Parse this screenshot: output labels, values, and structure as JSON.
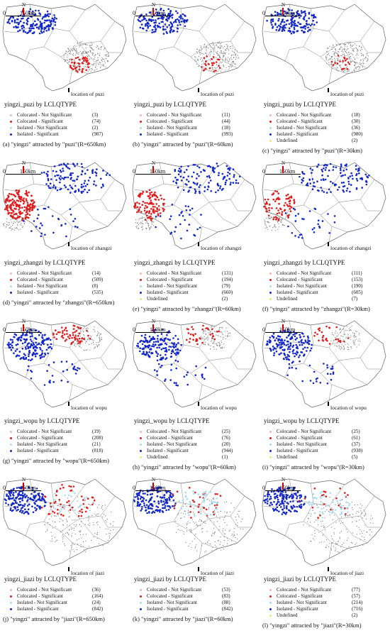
{
  "colors": {
    "colocated_not_significant": "#f4b6a8",
    "colocated_significant": "#e01b1b",
    "isolated_not_significant": "#a9dcef",
    "isolated_significant": "#1327c8",
    "undefined": "#f5e27a",
    "background_points": "#777777",
    "boundary": "#666666"
  },
  "scale": {
    "zero": "0",
    "distance": "150km",
    "north": "N"
  },
  "panels": [
    {
      "title": "yingzi_puzi by LCLQTYPE",
      "location": "location of puzi",
      "caption": "(a) \"yingzi\" attracted by \"puzi\"(R=650km)",
      "legend": [
        {
          "label": "Colocated - Not Significant",
          "count": "(3)",
          "color": "#f4b6a8"
        },
        {
          "label": "Colocated - Significant",
          "count": "(74)",
          "color": "#e01b1b"
        },
        {
          "label": "Isolated - Not Significant",
          "count": "(2)",
          "color": "#a9dcef"
        },
        {
          "label": "Isolated - Significant",
          "count": "(987)",
          "color": "#1327c8"
        }
      ]
    },
    {
      "title": "yingzi_puzi by LCLQTYPE",
      "location": "location of puzi",
      "caption": "(b) \"yingzi\" attracted by \"puzi\"(R=60km)",
      "legend": [
        {
          "label": "Colocated - Not Significant",
          "count": "(11)",
          "color": "#f4b6a8"
        },
        {
          "label": "Colocated - Significant",
          "count": "(44)",
          "color": "#e01b1b"
        },
        {
          "label": "Isolated - Not Significant",
          "count": "(18)",
          "color": "#a9dcef"
        },
        {
          "label": "Isolated - Significant",
          "count": "(993)",
          "color": "#1327c8"
        }
      ]
    },
    {
      "title": "yingzi_puzi by LCLQTYPE",
      "location": "location of puzi",
      "caption": "(c) \"yingzi\" attracted by \"puzi\"(R=30km)",
      "legend": [
        {
          "label": "Colocated - Not Significant",
          "count": "(18)",
          "color": "#f4b6a8"
        },
        {
          "label": "Colocated - Significant",
          "count": "(30)",
          "color": "#e01b1b"
        },
        {
          "label": "Isolated - Not Significant",
          "count": "(36)",
          "color": "#a9dcef"
        },
        {
          "label": "Isolated - Significant",
          "count": "(980)",
          "color": "#1327c8"
        },
        {
          "label": "Undefined",
          "count": "(2)",
          "color": "#f5e27a"
        }
      ]
    },
    {
      "title": "yingzi_zhangzi by LCLQTYPE",
      "location": "location of zhangzi",
      "caption": "(d) \"yingzi\" attracted by \"zhangzi\"(R=650km)",
      "legend": [
        {
          "label": "Colocated - Not Significant",
          "count": "(14)",
          "color": "#f4b6a8"
        },
        {
          "label": "Colocated - Significant",
          "count": "(509)",
          "color": "#e01b1b"
        },
        {
          "label": "Isolated - Not Significant",
          "count": "(8)",
          "color": "#a9dcef"
        },
        {
          "label": "Isolated - Significant",
          "count": "(535)",
          "color": "#1327c8"
        }
      ]
    },
    {
      "title": "yingzi_zhangzi by LCLQTYPE",
      "location": "location of zhangzi",
      "caption": "(e) \"yingzi\" attracted by \"zhangzi\"(R=60km)",
      "legend": [
        {
          "label": "Colocated - Not Significant",
          "count": "(131)",
          "color": "#f4b6a8"
        },
        {
          "label": "Colocated - Significant",
          "count": "(194)",
          "color": "#e01b1b"
        },
        {
          "label": "Isolated - Not Significant",
          "count": "(79)",
          "color": "#a9dcef"
        },
        {
          "label": "Isolated - Significant",
          "count": "(660)",
          "color": "#1327c8"
        },
        {
          "label": "Undefined",
          "count": "(2)",
          "color": "#f5e27a"
        }
      ]
    },
    {
      "title": "yingzi_zhangzi by LCLQTYPE",
      "location": "location of zhangzi",
      "caption": "(f) \"yingzi\" attracted by \"zhangzi\"(R=30km)",
      "legend": [
        {
          "label": "Colocated - Not Significant",
          "count": "(111)",
          "color": "#f4b6a8"
        },
        {
          "label": "Colocated - Significant",
          "count": "(153)",
          "color": "#e01b1b"
        },
        {
          "label": "Isolated - Not Significant",
          "count": "(190)",
          "color": "#a9dcef"
        },
        {
          "label": "Isolated - Significant",
          "count": "(605)",
          "color": "#1327c8"
        },
        {
          "label": "Undefined",
          "count": "(7)",
          "color": "#f5e27a"
        }
      ]
    },
    {
      "title": "yingzi_wopu by LCLQTYPE",
      "location": "location of wopu",
      "caption": "(g) \"yingzi\" attracted by \"wopu\"(R=650km)",
      "legend": [
        {
          "label": "Colocated - Not Significant",
          "count": "(19)",
          "color": "#f4b6a8"
        },
        {
          "label": "Colocated - Significant",
          "count": "(208)",
          "color": "#e01b1b"
        },
        {
          "label": "Isolated - Not Significant",
          "count": "(21)",
          "color": "#a9dcef"
        },
        {
          "label": "Isolated - Significant",
          "count": "(818)",
          "color": "#1327c8"
        }
      ]
    },
    {
      "title": "yingzi_wopu by LCLQTYPE",
      "location": "location of wopu",
      "caption": "(h) \"yingzi\" attracted by \"wopu\"(R=60km)",
      "legend": [
        {
          "label": "Colocated - Not Significant",
          "count": "(25)",
          "color": "#f4b6a8"
        },
        {
          "label": "Colocated - Significant",
          "count": "(76)",
          "color": "#e01b1b"
        },
        {
          "label": "Isolated - Not Significant",
          "count": "(20)",
          "color": "#a9dcef"
        },
        {
          "label": "Isolated - Significant",
          "count": "(944)",
          "color": "#1327c8"
        },
        {
          "label": "Undefined",
          "count": "(1)",
          "color": "#f5e27a"
        }
      ]
    },
    {
      "title": "yingzi_wopu by LCLQTYPE",
      "location": "location of wopu",
      "caption": "(i) \"yingzi\" attracted by \"wopu\"(R=30km)",
      "legend": [
        {
          "label": "Colocated - Not Significant",
          "count": "(25)",
          "color": "#f4b6a8"
        },
        {
          "label": "Colocated - Significant",
          "count": "(61)",
          "color": "#e01b1b"
        },
        {
          "label": "Isolated - Not Significant",
          "count": "(37)",
          "color": "#a9dcef"
        },
        {
          "label": "Isolated - Significant",
          "count": "(938)",
          "color": "#1327c8"
        },
        {
          "label": "Undefined",
          "count": "(5)",
          "color": "#f5e27a"
        }
      ]
    },
    {
      "title": "yingzi_jiazi by LCLQTYPE",
      "location": "location of jiazi",
      "caption": "(j) \"yingzi\" attracted by \"jiazi\"(R=650km)",
      "legend": [
        {
          "label": "Colocated - Not Significant",
          "count": "(36)",
          "color": "#f4b6a8"
        },
        {
          "label": "Colocated - Significant",
          "count": "(164)",
          "color": "#e01b1b"
        },
        {
          "label": "Isolated - Not Significant",
          "count": "(24)",
          "color": "#a9dcef"
        },
        {
          "label": "Isolated - Significant",
          "count": "(842)",
          "color": "#1327c8"
        }
      ]
    },
    {
      "title": "yingzi_jiazi by LCLQTYPE",
      "location": "location of jiazi",
      "caption": "(k) \"yingzi\" attracted by \"jiazi\"(R=60km)",
      "legend": [
        {
          "label": "Colocated - Not Significant",
          "count": "(53)",
          "color": "#f4b6a8"
        },
        {
          "label": "Colocated - Significant",
          "count": "(83)",
          "color": "#e01b1b"
        },
        {
          "label": "Isolated - Not Significant",
          "count": "(88)",
          "color": "#a9dcef"
        },
        {
          "label": "Isolated - Significant",
          "count": "(842)",
          "color": "#1327c8"
        }
      ]
    },
    {
      "title": "yingzi_jiazi by LCLQTYPE",
      "location": "location of jiazi",
      "caption": "(l) \"yingzi\" attracted by \"jiazi\"(R=30km)",
      "legend": [
        {
          "label": "Colocated - Not Significant",
          "count": "(77)",
          "color": "#f4b6a8"
        },
        {
          "label": "Colocated - Significant",
          "count": "(57)",
          "color": "#e01b1b"
        },
        {
          "label": "Isolated - Not Significant",
          "count": "(214)",
          "color": "#a9dcef"
        },
        {
          "label": "Isolated - Significant",
          "count": "(716)",
          "color": "#1327c8"
        },
        {
          "label": "Undefined",
          "count": "(2)",
          "color": "#f5e27a"
        }
      ]
    }
  ]
}
